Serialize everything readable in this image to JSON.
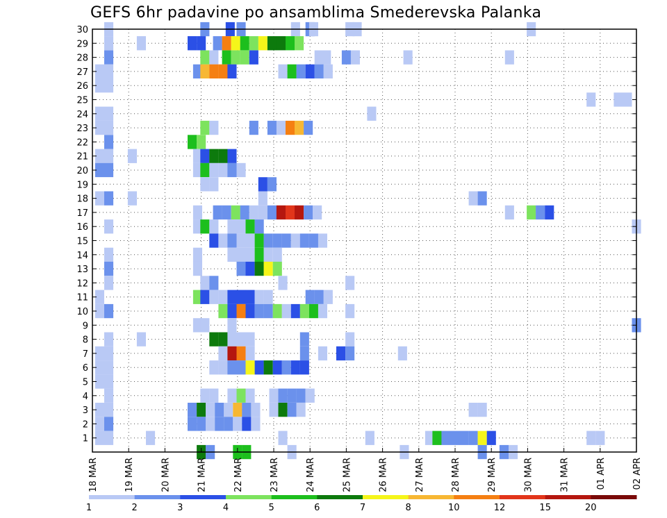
{
  "chart_data": {
    "type": "heatmap",
    "title": "GEFS 6hr padavine po ansamblima Smederevska Palanka",
    "xlabel": "",
    "ylabel": "",
    "grid": true,
    "x_ticks": [
      "18 MAR",
      "19 MAR",
      "20 MAR",
      "21 MAR",
      "22 MAR",
      "23 MAR",
      "24 MAR",
      "25 MAR",
      "26 MAR",
      "27 MAR",
      "28 MAR",
      "29 MAR",
      "30 MAR",
      "31 MAR",
      "01 APR",
      "02 APR"
    ],
    "x_range": [
      0,
      15
    ],
    "y_range": [
      0,
      30
    ],
    "y_ticks": [
      1,
      2,
      3,
      4,
      5,
      6,
      7,
      8,
      9,
      10,
      11,
      12,
      13,
      14,
      15,
      16,
      17,
      18,
      19,
      20,
      21,
      22,
      23,
      24,
      25,
      26,
      27,
      28,
      29,
      30
    ],
    "colorbar": {
      "labels": [
        "1",
        "2",
        "3",
        "4",
        "5",
        "6",
        "7",
        "8",
        "10",
        "12",
        "15",
        "20"
      ],
      "colors": [
        "#b9c9f5",
        "#6b91ec",
        "#2b50e6",
        "#7de35e",
        "#1dbf1d",
        "#0d7a0d",
        "#f5f51a",
        "#f7b733",
        "#f57f12",
        "#e2351a",
        "#b5170f",
        "#7a0a08"
      ]
    },
    "cells": [
      [
        0.45,
        30,
        1
      ],
      [
        3.1,
        30,
        2
      ],
      [
        3.8,
        30,
        3
      ],
      [
        4.1,
        30,
        2
      ],
      [
        5.6,
        30,
        1
      ],
      [
        6.0,
        30,
        2
      ],
      [
        6.1,
        30,
        1
      ],
      [
        7.1,
        30,
        1
      ],
      [
        7.3,
        30,
        1
      ],
      [
        12.1,
        30,
        1
      ],
      [
        0.45,
        29,
        1
      ],
      [
        1.35,
        29,
        1
      ],
      [
        2.75,
        29,
        3
      ],
      [
        3.0,
        29,
        3
      ],
      [
        3.45,
        29,
        2
      ],
      [
        3.7,
        29,
        9
      ],
      [
        3.95,
        29,
        7
      ],
      [
        4.2,
        29,
        5
      ],
      [
        4.45,
        29,
        4
      ],
      [
        4.7,
        29,
        7
      ],
      [
        4.95,
        29,
        6
      ],
      [
        5.2,
        29,
        6
      ],
      [
        5.45,
        29,
        5
      ],
      [
        5.7,
        29,
        4
      ],
      [
        0.45,
        28,
        2
      ],
      [
        3.1,
        28,
        4
      ],
      [
        3.35,
        28,
        1
      ],
      [
        3.7,
        28,
        5
      ],
      [
        3.95,
        28,
        4
      ],
      [
        4.2,
        28,
        4
      ],
      [
        4.45,
        28,
        3
      ],
      [
        6.25,
        28,
        1
      ],
      [
        6.45,
        28,
        1
      ],
      [
        7.0,
        28,
        2
      ],
      [
        7.25,
        28,
        1
      ],
      [
        8.7,
        28,
        1
      ],
      [
        11.5,
        28,
        1
      ],
      [
        0.2,
        27,
        1
      ],
      [
        0.45,
        27,
        1
      ],
      [
        2.9,
        27,
        2
      ],
      [
        3.1,
        27,
        8
      ],
      [
        3.35,
        27,
        9
      ],
      [
        3.6,
        27,
        9
      ],
      [
        3.85,
        27,
        3
      ],
      [
        5.25,
        27,
        1
      ],
      [
        5.5,
        27,
        5
      ],
      [
        5.75,
        27,
        2
      ],
      [
        6.0,
        27,
        3
      ],
      [
        6.25,
        27,
        2
      ],
      [
        6.5,
        27,
        1
      ],
      [
        0.2,
        26,
        1
      ],
      [
        0.45,
        26,
        1
      ],
      [
        13.75,
        25,
        1
      ],
      [
        14.5,
        25,
        1
      ],
      [
        14.75,
        25,
        1
      ],
      [
        0.2,
        24,
        1
      ],
      [
        0.45,
        24,
        1
      ],
      [
        7.7,
        24,
        1
      ],
      [
        0.2,
        23,
        1
      ],
      [
        0.45,
        23,
        1
      ],
      [
        3.1,
        23,
        4
      ],
      [
        3.35,
        23,
        1
      ],
      [
        4.45,
        23,
        2
      ],
      [
        4.95,
        23,
        2
      ],
      [
        5.2,
        23,
        1
      ],
      [
        5.45,
        23,
        9
      ],
      [
        5.7,
        23,
        8
      ],
      [
        5.95,
        23,
        2
      ],
      [
        0.45,
        22,
        2
      ],
      [
        2.75,
        22,
        5
      ],
      [
        3.0,
        22,
        4
      ],
      [
        0.2,
        21,
        1
      ],
      [
        0.45,
        21,
        1
      ],
      [
        1.1,
        21,
        1
      ],
      [
        2.9,
        21,
        1
      ],
      [
        3.1,
        21,
        3
      ],
      [
        3.35,
        21,
        6
      ],
      [
        3.6,
        21,
        6
      ],
      [
        3.85,
        21,
        3
      ],
      [
        0.2,
        20,
        2
      ],
      [
        0.45,
        20,
        2
      ],
      [
        2.9,
        20,
        1
      ],
      [
        3.1,
        20,
        5
      ],
      [
        3.35,
        20,
        1
      ],
      [
        3.6,
        20,
        1
      ],
      [
        3.85,
        20,
        2
      ],
      [
        4.1,
        20,
        1
      ],
      [
        3.1,
        19,
        1
      ],
      [
        3.35,
        19,
        1
      ],
      [
        4.7,
        19,
        3
      ],
      [
        4.95,
        19,
        2
      ],
      [
        0.2,
        18,
        1
      ],
      [
        0.45,
        18,
        2
      ],
      [
        1.1,
        18,
        1
      ],
      [
        4.7,
        18,
        1
      ],
      [
        10.5,
        18,
        1
      ],
      [
        10.75,
        18,
        2
      ],
      [
        2.9,
        17,
        1
      ],
      [
        3.45,
        17,
        2
      ],
      [
        3.7,
        17,
        2
      ],
      [
        3.95,
        17,
        4
      ],
      [
        4.2,
        17,
        2
      ],
      [
        4.45,
        17,
        1
      ],
      [
        4.7,
        17,
        1
      ],
      [
        4.95,
        17,
        2
      ],
      [
        5.2,
        17,
        11
      ],
      [
        5.45,
        17,
        10
      ],
      [
        5.7,
        17,
        11
      ],
      [
        5.95,
        17,
        2
      ],
      [
        6.2,
        17,
        1
      ],
      [
        11.5,
        17,
        1
      ],
      [
        12.1,
        17,
        4
      ],
      [
        12.35,
        17,
        2
      ],
      [
        12.6,
        17,
        3
      ],
      [
        0.45,
        16,
        1
      ],
      [
        2.9,
        16,
        1
      ],
      [
        3.1,
        16,
        5
      ],
      [
        3.35,
        16,
        1
      ],
      [
        3.85,
        16,
        1
      ],
      [
        4.1,
        16,
        1
      ],
      [
        4.35,
        16,
        5
      ],
      [
        4.6,
        16,
        2
      ],
      [
        15.0,
        16,
        1
      ],
      [
        3.35,
        15,
        3
      ],
      [
        3.6,
        15,
        1
      ],
      [
        3.85,
        15,
        2
      ],
      [
        4.1,
        15,
        1
      ],
      [
        4.35,
        15,
        1
      ],
      [
        4.6,
        15,
        5
      ],
      [
        4.85,
        15,
        2
      ],
      [
        5.1,
        15,
        2
      ],
      [
        5.35,
        15,
        2
      ],
      [
        5.6,
        15,
        1
      ],
      [
        5.85,
        15,
        2
      ],
      [
        6.1,
        15,
        2
      ],
      [
        6.35,
        15,
        1
      ],
      [
        0.45,
        14,
        1
      ],
      [
        2.9,
        14,
        1
      ],
      [
        3.85,
        14,
        1
      ],
      [
        4.1,
        14,
        1
      ],
      [
        4.35,
        14,
        1
      ],
      [
        4.6,
        14,
        5
      ],
      [
        4.85,
        14,
        1
      ],
      [
        5.1,
        14,
        1
      ],
      [
        0.45,
        13,
        2
      ],
      [
        2.9,
        13,
        1
      ],
      [
        4.1,
        13,
        2
      ],
      [
        4.35,
        13,
        3
      ],
      [
        4.6,
        13,
        6
      ],
      [
        4.85,
        13,
        7
      ],
      [
        5.1,
        13,
        4
      ],
      [
        0.45,
        12,
        1
      ],
      [
        3.1,
        12,
        1
      ],
      [
        3.35,
        12,
        2
      ],
      [
        5.25,
        12,
        1
      ],
      [
        7.1,
        12,
        1
      ],
      [
        0.2,
        11,
        1
      ],
      [
        2.9,
        11,
        4
      ],
      [
        3.1,
        11,
        3
      ],
      [
        3.35,
        11,
        1
      ],
      [
        3.6,
        11,
        1
      ],
      [
        3.85,
        11,
        3
      ],
      [
        4.1,
        11,
        3
      ],
      [
        4.35,
        11,
        3
      ],
      [
        4.6,
        11,
        1
      ],
      [
        4.85,
        11,
        1
      ],
      [
        6.0,
        11,
        2
      ],
      [
        6.25,
        11,
        2
      ],
      [
        6.5,
        11,
        1
      ],
      [
        0.2,
        10,
        1
      ],
      [
        0.45,
        10,
        2
      ],
      [
        3.6,
        10,
        4
      ],
      [
        3.85,
        10,
        3
      ],
      [
        4.1,
        10,
        9
      ],
      [
        4.35,
        10,
        3
      ],
      [
        4.6,
        10,
        2
      ],
      [
        4.85,
        10,
        2
      ],
      [
        5.1,
        10,
        4
      ],
      [
        5.35,
        10,
        1
      ],
      [
        5.6,
        10,
        3
      ],
      [
        5.85,
        10,
        4
      ],
      [
        6.1,
        10,
        5
      ],
      [
        6.35,
        10,
        1
      ],
      [
        7.1,
        10,
        1
      ],
      [
        2.9,
        9,
        1
      ],
      [
        3.1,
        9,
        1
      ],
      [
        3.85,
        9,
        1
      ],
      [
        15.0,
        9,
        2
      ],
      [
        0.45,
        8,
        1
      ],
      [
        1.35,
        8,
        1
      ],
      [
        3.35,
        8,
        6
      ],
      [
        3.6,
        8,
        6
      ],
      [
        3.85,
        8,
        1
      ],
      [
        4.1,
        8,
        1
      ],
      [
        4.35,
        8,
        1
      ],
      [
        5.85,
        8,
        2
      ],
      [
        7.1,
        8,
        1
      ],
      [
        0.2,
        7,
        1
      ],
      [
        0.45,
        7,
        1
      ],
      [
        3.6,
        7,
        1
      ],
      [
        3.85,
        7,
        11
      ],
      [
        4.1,
        7,
        9
      ],
      [
        4.35,
        7,
        1
      ],
      [
        5.85,
        7,
        2
      ],
      [
        6.35,
        7,
        1
      ],
      [
        6.85,
        7,
        3
      ],
      [
        7.1,
        7,
        2
      ],
      [
        8.55,
        7,
        1
      ],
      [
        0.2,
        6,
        1
      ],
      [
        0.45,
        6,
        1
      ],
      [
        3.35,
        6,
        1
      ],
      [
        3.6,
        6,
        1
      ],
      [
        3.85,
        6,
        2
      ],
      [
        4.1,
        6,
        2
      ],
      [
        4.35,
        6,
        7
      ],
      [
        4.6,
        6,
        3
      ],
      [
        4.85,
        6,
        6
      ],
      [
        5.1,
        6,
        3
      ],
      [
        5.35,
        6,
        2
      ],
      [
        5.6,
        6,
        3
      ],
      [
        5.85,
        6,
        3
      ],
      [
        0.2,
        5,
        1
      ],
      [
        0.45,
        5,
        1
      ],
      [
        0.45,
        4,
        1
      ],
      [
        3.1,
        4,
        1
      ],
      [
        3.35,
        4,
        1
      ],
      [
        3.85,
        4,
        1
      ],
      [
        4.1,
        4,
        4
      ],
      [
        4.35,
        4,
        1
      ],
      [
        5.0,
        4,
        1
      ],
      [
        5.25,
        4,
        2
      ],
      [
        5.5,
        4,
        2
      ],
      [
        5.75,
        4,
        2
      ],
      [
        6.0,
        4,
        1
      ],
      [
        0.2,
        3,
        1
      ],
      [
        0.45,
        3,
        1
      ],
      [
        2.75,
        3,
        2
      ],
      [
        3.0,
        3,
        6
      ],
      [
        3.25,
        3,
        1
      ],
      [
        3.5,
        3,
        2
      ],
      [
        3.75,
        3,
        1
      ],
      [
        4.0,
        3,
        8
      ],
      [
        4.25,
        3,
        2
      ],
      [
        4.5,
        3,
        1
      ],
      [
        5.0,
        3,
        1
      ],
      [
        5.25,
        3,
        6
      ],
      [
        5.5,
        3,
        2
      ],
      [
        5.75,
        3,
        1
      ],
      [
        10.5,
        3,
        1
      ],
      [
        10.75,
        3,
        1
      ],
      [
        0.2,
        2,
        1
      ],
      [
        0.45,
        2,
        2
      ],
      [
        2.75,
        2,
        2
      ],
      [
        3.0,
        2,
        2
      ],
      [
        3.25,
        2,
        1
      ],
      [
        3.5,
        2,
        2
      ],
      [
        3.75,
        2,
        2
      ],
      [
        4.0,
        2,
        1
      ],
      [
        4.25,
        2,
        3
      ],
      [
        4.5,
        2,
        1
      ],
      [
        0.2,
        1,
        1
      ],
      [
        0.45,
        1,
        1
      ],
      [
        1.6,
        1,
        1
      ],
      [
        5.25,
        1,
        1
      ],
      [
        7.65,
        1,
        1
      ],
      [
        9.3,
        1,
        1
      ],
      [
        9.5,
        1,
        5
      ],
      [
        9.75,
        1,
        2
      ],
      [
        10.0,
        1,
        2
      ],
      [
        10.25,
        1,
        2
      ],
      [
        10.5,
        1,
        2
      ],
      [
        10.75,
        1,
        7
      ],
      [
        11.0,
        1,
        3
      ],
      [
        13.75,
        1,
        1
      ],
      [
        14.0,
        1,
        1
      ],
      [
        3.0,
        0,
        6
      ],
      [
        3.25,
        0,
        2
      ],
      [
        4.0,
        0,
        5
      ],
      [
        4.25,
        0,
        5
      ],
      [
        5.5,
        0,
        1
      ],
      [
        8.6,
        0,
        1
      ],
      [
        10.75,
        0,
        2
      ],
      [
        11.35,
        0,
        2
      ],
      [
        11.6,
        0,
        1
      ]
    ]
  }
}
